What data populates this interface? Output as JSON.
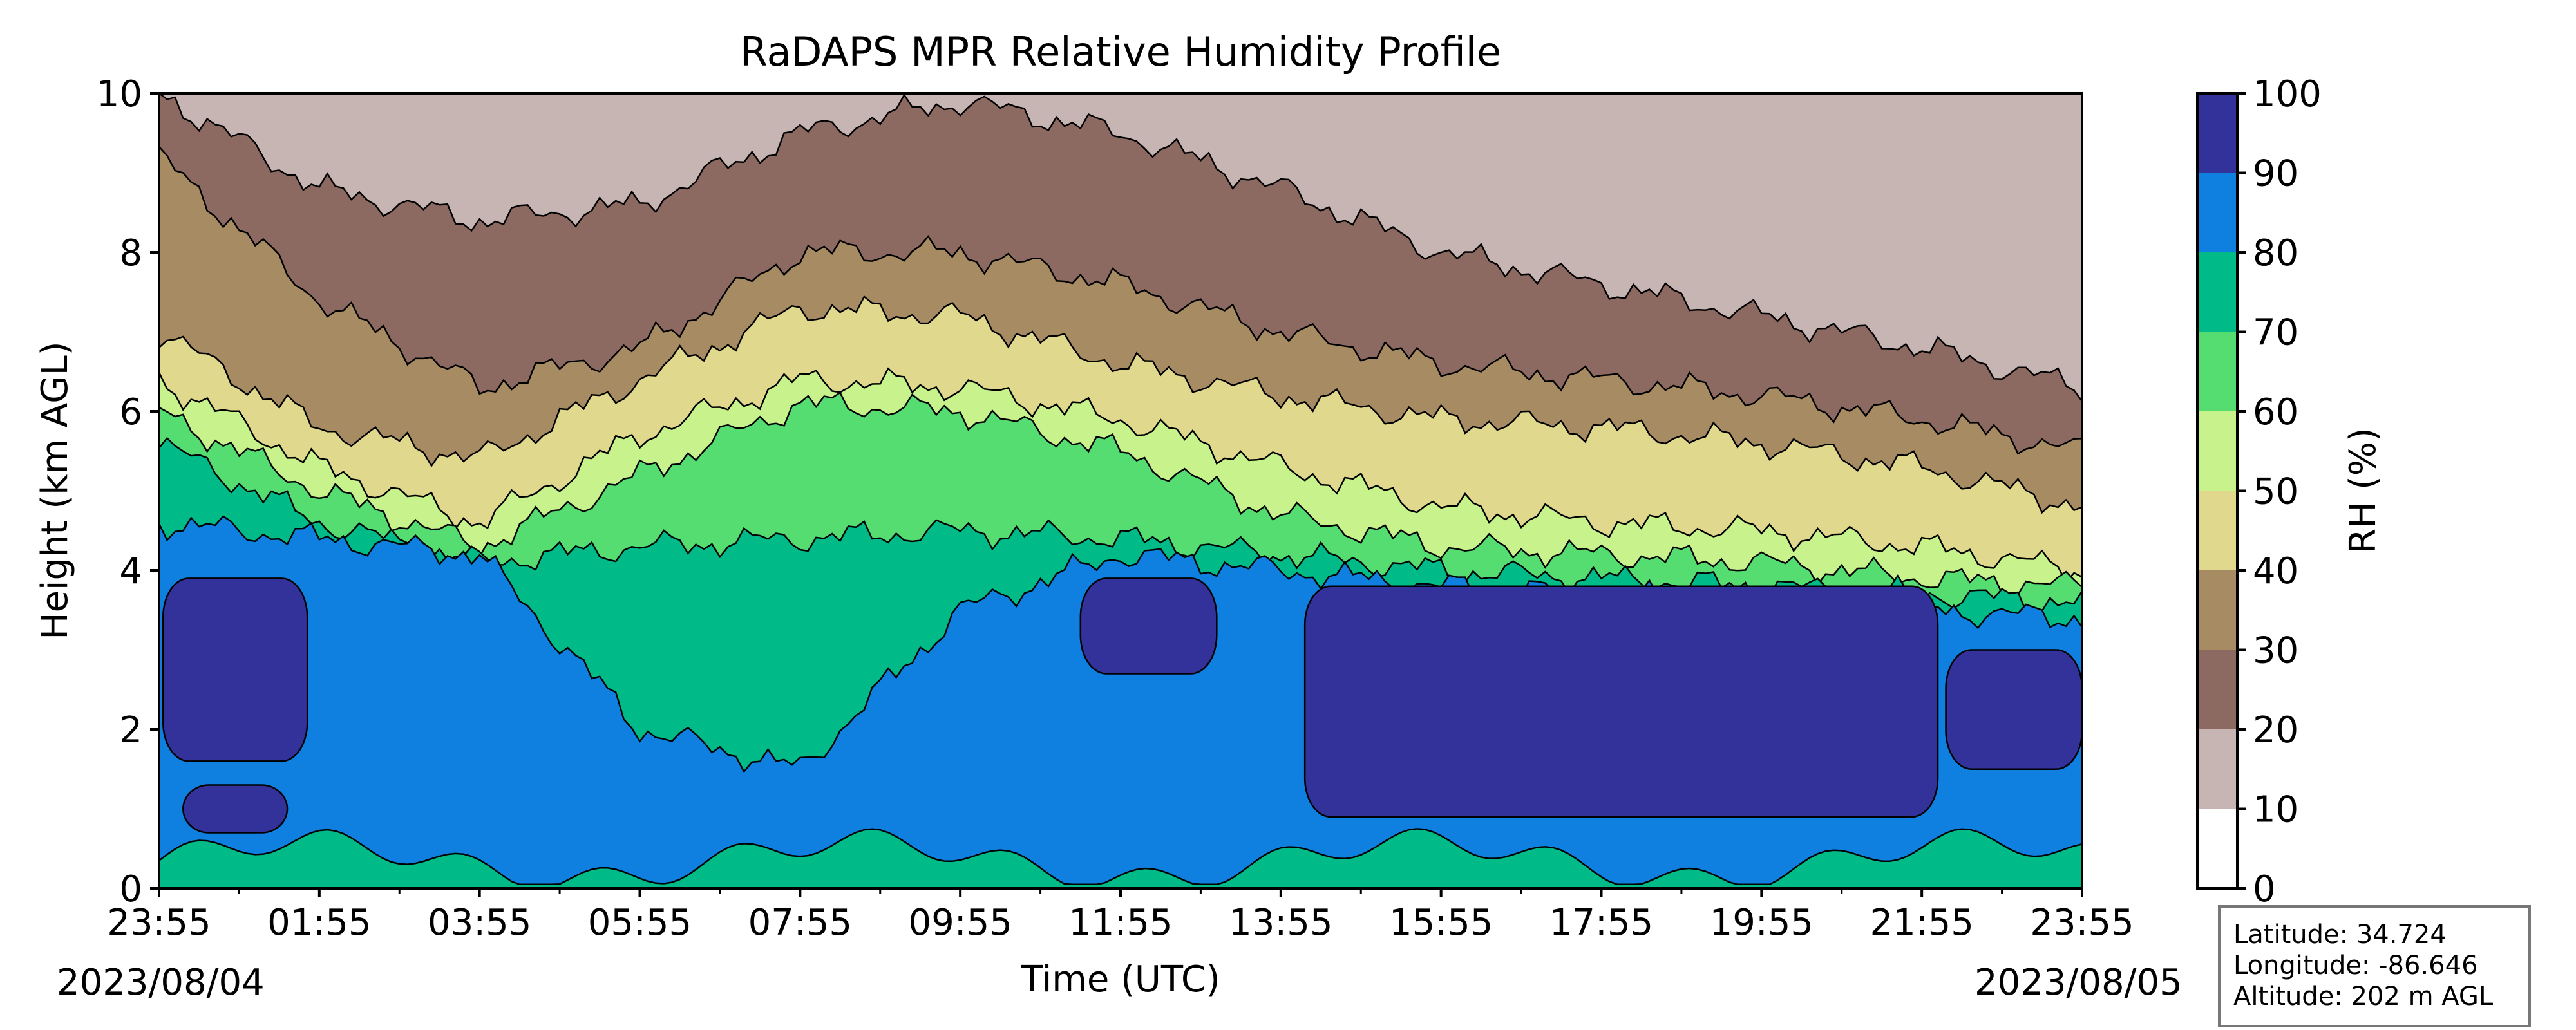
{
  "chart_data": {
    "type": "filled-contour",
    "title": "RaDAPS MPR Relative Humidity Profile",
    "xlabel": "Time (UTC)",
    "ylabel": "Height (km AGL)",
    "ylim": [
      0,
      10
    ],
    "yticks": [
      "0",
      "2",
      "4",
      "6",
      "8",
      "10"
    ],
    "xlim_hours": [
      0,
      24
    ],
    "xticks": [
      "23:55",
      "01:55",
      "03:55",
      "05:55",
      "07:55",
      "09:55",
      "11:55",
      "13:55",
      "15:55",
      "17:55",
      "19:55",
      "21:55",
      "23:55"
    ],
    "date_start": "2023/08/04",
    "date_end": "2023/08/05",
    "colorbar": {
      "label": "RH (%)",
      "levels": [
        0,
        10,
        20,
        30,
        40,
        50,
        60,
        70,
        80,
        90,
        100
      ],
      "tick_labels": [
        "0",
        "10",
        "20",
        "30",
        "40",
        "50",
        "60",
        "70",
        "80",
        "90",
        "100"
      ],
      "colors": [
        "#ffffff",
        "#c6b5b2",
        "#8c6a62",
        "#a68b63",
        "#e0d98d",
        "#c8f28c",
        "#55dd72",
        "#00bb88",
        "#0f80e0",
        "#32329a"
      ]
    },
    "contour_heights_km": {
      "description_levels_rh": [
        20,
        30,
        40,
        50,
        60,
        70,
        80,
        90
      ],
      "x_hours": [
        0,
        2,
        4,
        6,
        8,
        10,
        12,
        14,
        16,
        18,
        20,
        22,
        24
      ],
      "level_20": [
        10.0,
        8.8,
        8.4,
        8.6,
        9.5,
        9.9,
        9.5,
        8.8,
        8.0,
        7.6,
        7.2,
        6.8,
        6.3
      ],
      "level_30": [
        9.2,
        7.4,
        6.3,
        6.8,
        8.0,
        8.0,
        7.6,
        7.0,
        6.6,
        6.4,
        6.2,
        5.9,
        5.5
      ],
      "level_40": [
        7.0,
        5.8,
        5.4,
        6.4,
        7.3,
        7.2,
        6.6,
        6.2,
        5.9,
        5.8,
        5.6,
        5.3,
        4.8
      ],
      "level_50": [
        6.4,
        5.3,
        4.6,
        5.7,
        6.4,
        6.3,
        5.9,
        5.3,
        4.8,
        4.6,
        4.5,
        4.3,
        4.0
      ],
      "level_60": [
        6.0,
        5.0,
        4.3,
        5.2,
        6.1,
        6.0,
        5.5,
        4.7,
        4.3,
        4.2,
        4.1,
        3.9,
        3.8
      ],
      "level_70": [
        5.6,
        4.6,
        4.1,
        4.3,
        4.4,
        4.5,
        4.4,
        4.2,
        4.0,
        3.9,
        3.8,
        3.7,
        3.6
      ],
      "level_80": [
        4.6,
        4.4,
        4.2,
        2.0,
        1.5,
        3.5,
        4.2,
        4.0,
        3.8,
        3.7,
        3.6,
        3.5,
        3.4
      ]
    }
  },
  "info_box": {
    "latitude": "Latitude: 34.724",
    "longitude": "Longitude: -86.646",
    "altitude": "Altitude: 202 m AGL"
  }
}
